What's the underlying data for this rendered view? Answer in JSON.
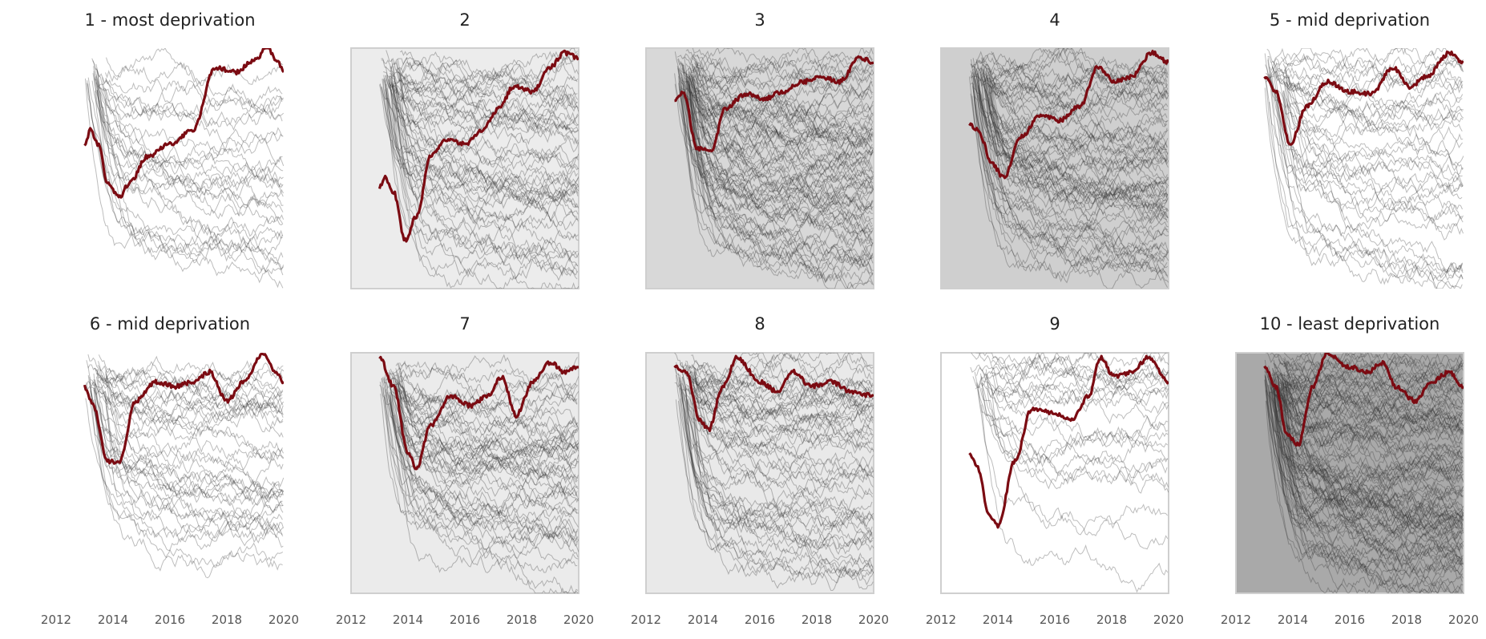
{
  "chart_data": {
    "type": "line",
    "x_ticks": [
      "2012",
      "2014",
      "2016",
      "2018",
      "2020"
    ],
    "xlim": [
      2012,
      2020
    ],
    "ylim": [
      0,
      1
    ],
    "grid": false,
    "highlight_color": "#7b0b12",
    "background_line_color": "#333333",
    "panels": [
      {
        "title": "1 - most deprivation",
        "background": "#ffffff",
        "frame": false,
        "n_lines": 30,
        "seed": 11,
        "highlight": [
          [
            2013.0,
            0.59
          ],
          [
            2013.2,
            0.66
          ],
          [
            2013.5,
            0.6
          ],
          [
            2013.8,
            0.44
          ],
          [
            2014.2,
            0.38
          ],
          [
            2014.6,
            0.44
          ],
          [
            2015.2,
            0.55
          ],
          [
            2016.0,
            0.6
          ],
          [
            2016.8,
            0.66
          ],
          [
            2017.6,
            0.92
          ],
          [
            2018.3,
            0.9
          ],
          [
            2019.0,
            0.95
          ],
          [
            2019.4,
            1.0
          ],
          [
            2019.8,
            0.94
          ],
          [
            2020.0,
            0.9
          ]
        ]
      },
      {
        "title": "2",
        "background": "#ececec",
        "frame": true,
        "n_lines": 55,
        "seed": 23,
        "highlight": [
          [
            2013.0,
            0.42
          ],
          [
            2013.2,
            0.46
          ],
          [
            2013.5,
            0.4
          ],
          [
            2013.9,
            0.2
          ],
          [
            2014.3,
            0.3
          ],
          [
            2014.8,
            0.55
          ],
          [
            2015.3,
            0.62
          ],
          [
            2016.0,
            0.6
          ],
          [
            2016.6,
            0.66
          ],
          [
            2017.2,
            0.75
          ],
          [
            2017.7,
            0.84
          ],
          [
            2018.4,
            0.82
          ],
          [
            2019.0,
            0.92
          ],
          [
            2019.5,
            0.98
          ],
          [
            2020.0,
            0.96
          ]
        ]
      },
      {
        "title": "3",
        "background": "#d8d8d8",
        "frame": true,
        "n_lines": 85,
        "seed": 37,
        "highlight": [
          [
            2013.0,
            0.78
          ],
          [
            2013.3,
            0.82
          ],
          [
            2013.8,
            0.58
          ],
          [
            2014.3,
            0.58
          ],
          [
            2014.8,
            0.75
          ],
          [
            2015.5,
            0.81
          ],
          [
            2016.2,
            0.79
          ],
          [
            2016.8,
            0.82
          ],
          [
            2017.5,
            0.86
          ],
          [
            2018.2,
            0.88
          ],
          [
            2018.8,
            0.86
          ],
          [
            2019.5,
            0.96
          ],
          [
            2020.0,
            0.94
          ]
        ]
      },
      {
        "title": "4",
        "background": "#cfcfcf",
        "frame": true,
        "n_lines": 75,
        "seed": 41,
        "highlight": [
          [
            2013.0,
            0.68
          ],
          [
            2013.3,
            0.66
          ],
          [
            2013.8,
            0.52
          ],
          [
            2014.2,
            0.46
          ],
          [
            2014.8,
            0.63
          ],
          [
            2015.5,
            0.72
          ],
          [
            2016.2,
            0.7
          ],
          [
            2016.9,
            0.76
          ],
          [
            2017.5,
            0.92
          ],
          [
            2018.1,
            0.86
          ],
          [
            2018.7,
            0.88
          ],
          [
            2019.4,
            0.98
          ],
          [
            2020.0,
            0.94
          ]
        ]
      },
      {
        "title": "5 - mid deprivation",
        "background": "#ffffff",
        "frame": false,
        "n_lines": 40,
        "seed": 53,
        "highlight": [
          [
            2013.0,
            0.88
          ],
          [
            2013.4,
            0.82
          ],
          [
            2013.9,
            0.6
          ],
          [
            2014.5,
            0.76
          ],
          [
            2015.2,
            0.86
          ],
          [
            2016.0,
            0.82
          ],
          [
            2016.8,
            0.81
          ],
          [
            2017.5,
            0.92
          ],
          [
            2018.1,
            0.84
          ],
          [
            2018.7,
            0.88
          ],
          [
            2019.5,
            0.98
          ],
          [
            2020.0,
            0.94
          ]
        ]
      },
      {
        "title": "6 - mid deprivation",
        "background": "#ffffff",
        "frame": false,
        "n_lines": 40,
        "seed": 61,
        "highlight": [
          [
            2013.0,
            0.86
          ],
          [
            2013.3,
            0.78
          ],
          [
            2013.8,
            0.55
          ],
          [
            2014.2,
            0.54
          ],
          [
            2014.8,
            0.8
          ],
          [
            2015.5,
            0.88
          ],
          [
            2016.2,
            0.86
          ],
          [
            2016.8,
            0.88
          ],
          [
            2017.4,
            0.92
          ],
          [
            2018.0,
            0.8
          ],
          [
            2018.6,
            0.88
          ],
          [
            2019.3,
            1.0
          ],
          [
            2019.7,
            0.92
          ],
          [
            2020.0,
            0.88
          ]
        ]
      },
      {
        "title": "7",
        "background": "#ebebeb",
        "frame": true,
        "n_lines": 55,
        "seed": 71,
        "highlight": [
          [
            2013.0,
            0.98
          ],
          [
            2013.5,
            0.86
          ],
          [
            2014.0,
            0.58
          ],
          [
            2014.3,
            0.52
          ],
          [
            2014.8,
            0.7
          ],
          [
            2015.5,
            0.82
          ],
          [
            2016.2,
            0.78
          ],
          [
            2016.8,
            0.82
          ],
          [
            2017.3,
            0.9
          ],
          [
            2017.8,
            0.74
          ],
          [
            2018.4,
            0.88
          ],
          [
            2019.0,
            0.96
          ],
          [
            2019.5,
            0.92
          ],
          [
            2020.0,
            0.94
          ]
        ]
      },
      {
        "title": "8",
        "background": "#e9e9e9",
        "frame": true,
        "n_lines": 60,
        "seed": 83,
        "highlight": [
          [
            2013.0,
            0.94
          ],
          [
            2013.4,
            0.92
          ],
          [
            2013.9,
            0.72
          ],
          [
            2014.2,
            0.68
          ],
          [
            2014.7,
            0.86
          ],
          [
            2015.2,
            0.98
          ],
          [
            2016.0,
            0.88
          ],
          [
            2016.6,
            0.84
          ],
          [
            2017.2,
            0.92
          ],
          [
            2017.8,
            0.86
          ],
          [
            2018.5,
            0.88
          ],
          [
            2019.2,
            0.84
          ],
          [
            2020.0,
            0.82
          ]
        ]
      },
      {
        "title": "9",
        "background": "#ffffff",
        "frame": true,
        "n_lines": 25,
        "seed": 97,
        "highlight": [
          [
            2013.0,
            0.58
          ],
          [
            2013.3,
            0.52
          ],
          [
            2013.7,
            0.32
          ],
          [
            2014.0,
            0.28
          ],
          [
            2014.6,
            0.55
          ],
          [
            2015.2,
            0.77
          ],
          [
            2016.0,
            0.75
          ],
          [
            2016.6,
            0.72
          ],
          [
            2017.2,
            0.82
          ],
          [
            2017.6,
            0.98
          ],
          [
            2018.1,
            0.9
          ],
          [
            2018.7,
            0.92
          ],
          [
            2019.3,
            0.98
          ],
          [
            2020.0,
            0.88
          ]
        ]
      },
      {
        "title": "10 - least deprivation",
        "background": "#a9a9a9",
        "frame": true,
        "n_lines": 110,
        "seed": 103,
        "highlight": [
          [
            2013.0,
            0.94
          ],
          [
            2013.4,
            0.86
          ],
          [
            2013.8,
            0.66
          ],
          [
            2014.2,
            0.62
          ],
          [
            2014.7,
            0.86
          ],
          [
            2015.2,
            1.0
          ],
          [
            2016.0,
            0.94
          ],
          [
            2016.6,
            0.92
          ],
          [
            2017.2,
            0.96
          ],
          [
            2017.6,
            0.86
          ],
          [
            2018.3,
            0.8
          ],
          [
            2018.9,
            0.88
          ],
          [
            2019.5,
            0.92
          ],
          [
            2020.0,
            0.86
          ]
        ]
      }
    ]
  }
}
